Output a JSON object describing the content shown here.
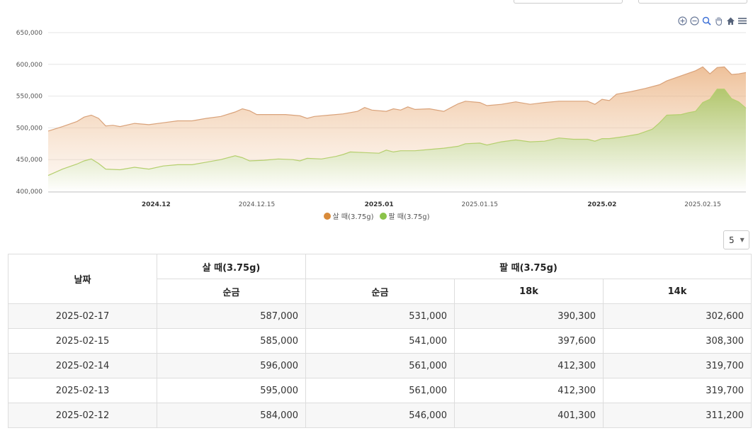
{
  "chart_data": {
    "type": "area",
    "y_ticks": [
      "650,000",
      "600,000",
      "550,000",
      "500,000",
      "450,000",
      "400,000"
    ],
    "ylim": [
      400000,
      650000
    ],
    "x_ticks": [
      {
        "label": "2024.12",
        "bold": true,
        "day": 15
      },
      {
        "label": "2024.12.15",
        "bold": false,
        "day": 29
      },
      {
        "label": "2025.01",
        "bold": true,
        "day": 46
      },
      {
        "label": "2025.01.15",
        "bold": false,
        "day": 60
      },
      {
        "label": "2025.02",
        "bold": true,
        "day": 77
      },
      {
        "label": "2025.02.15",
        "bold": false,
        "day": 91
      }
    ],
    "series": [
      {
        "name": "살 때(3.75g)",
        "color": "#d98b3a",
        "points": [
          [
            0,
            495000
          ],
          [
            2,
            502000
          ],
          [
            4,
            510000
          ],
          [
            5,
            517000
          ],
          [
            6,
            520000
          ],
          [
            7,
            515000
          ],
          [
            8,
            503000
          ],
          [
            9,
            504000
          ],
          [
            10,
            502000
          ],
          [
            12,
            507000
          ],
          [
            14,
            505000
          ],
          [
            16,
            508000
          ],
          [
            18,
            511000
          ],
          [
            20,
            511000
          ],
          [
            22,
            515000
          ],
          [
            24,
            518000
          ],
          [
            26,
            525000
          ],
          [
            27,
            530000
          ],
          [
            28,
            527000
          ],
          [
            29,
            521000
          ],
          [
            31,
            521000
          ],
          [
            33,
            521000
          ],
          [
            35,
            519000
          ],
          [
            36,
            515000
          ],
          [
            37,
            518000
          ],
          [
            39,
            520000
          ],
          [
            41,
            522000
          ],
          [
            43,
            526000
          ],
          [
            44,
            532000
          ],
          [
            45,
            528000
          ],
          [
            47,
            526000
          ],
          [
            48,
            530000
          ],
          [
            49,
            528000
          ],
          [
            50,
            533000
          ],
          [
            51,
            529000
          ],
          [
            53,
            530000
          ],
          [
            55,
            526000
          ],
          [
            56,
            532000
          ],
          [
            57,
            538000
          ],
          [
            58,
            542000
          ],
          [
            60,
            540000
          ],
          [
            61,
            535000
          ],
          [
            63,
            537000
          ],
          [
            65,
            541000
          ],
          [
            67,
            537000
          ],
          [
            69,
            540000
          ],
          [
            71,
            542000
          ],
          [
            73,
            542000
          ],
          [
            75,
            542000
          ],
          [
            76,
            537000
          ],
          [
            77,
            545000
          ],
          [
            78,
            543000
          ],
          [
            79,
            553000
          ],
          [
            81,
            557000
          ],
          [
            83,
            562000
          ],
          [
            85,
            568000
          ],
          [
            86,
            574000
          ],
          [
            88,
            582000
          ],
          [
            90,
            590000
          ],
          [
            91,
            596000
          ],
          [
            92,
            585000
          ],
          [
            93,
            595000
          ],
          [
            94,
            596000
          ],
          [
            95,
            584000
          ],
          [
            96,
            585000
          ],
          [
            97,
            587000
          ]
        ]
      },
      {
        "name": "팔 때(3.75g)",
        "color": "#8bc34a",
        "points": [
          [
            0,
            425000
          ],
          [
            2,
            435000
          ],
          [
            4,
            443000
          ],
          [
            5,
            448000
          ],
          [
            6,
            451000
          ],
          [
            7,
            444000
          ],
          [
            8,
            435000
          ],
          [
            10,
            434000
          ],
          [
            12,
            438000
          ],
          [
            14,
            435000
          ],
          [
            16,
            440000
          ],
          [
            18,
            442000
          ],
          [
            20,
            442000
          ],
          [
            22,
            446000
          ],
          [
            24,
            450000
          ],
          [
            26,
            456000
          ],
          [
            27,
            453000
          ],
          [
            28,
            448000
          ],
          [
            30,
            449000
          ],
          [
            32,
            451000
          ],
          [
            34,
            450000
          ],
          [
            35,
            448000
          ],
          [
            36,
            452000
          ],
          [
            38,
            451000
          ],
          [
            40,
            455000
          ],
          [
            41,
            458000
          ],
          [
            42,
            462000
          ],
          [
            44,
            461000
          ],
          [
            46,
            460000
          ],
          [
            47,
            465000
          ],
          [
            48,
            462000
          ],
          [
            49,
            464000
          ],
          [
            51,
            464000
          ],
          [
            53,
            466000
          ],
          [
            55,
            468000
          ],
          [
            57,
            471000
          ],
          [
            58,
            475000
          ],
          [
            60,
            476000
          ],
          [
            61,
            473000
          ],
          [
            63,
            478000
          ],
          [
            65,
            481000
          ],
          [
            67,
            478000
          ],
          [
            69,
            479000
          ],
          [
            71,
            484000
          ],
          [
            73,
            482000
          ],
          [
            75,
            482000
          ],
          [
            76,
            479000
          ],
          [
            77,
            483000
          ],
          [
            78,
            483000
          ],
          [
            80,
            486000
          ],
          [
            82,
            490000
          ],
          [
            84,
            498000
          ],
          [
            85,
            508000
          ],
          [
            86,
            520000
          ],
          [
            88,
            521000
          ],
          [
            89,
            524000
          ],
          [
            90,
            526000
          ],
          [
            91,
            540000
          ],
          [
            92,
            545000
          ],
          [
            93,
            561000
          ],
          [
            94,
            561000
          ],
          [
            95,
            546000
          ],
          [
            96,
            541000
          ],
          [
            97,
            531000
          ]
        ]
      }
    ],
    "grid": true,
    "legend_position": "bottom-center"
  },
  "toolbar": {
    "icons": [
      "zoom-in-icon",
      "zoom-out-icon",
      "magnifier-icon",
      "pan-icon",
      "home-icon",
      "menu-icon"
    ]
  },
  "page_size": {
    "value": "5"
  },
  "table": {
    "header": {
      "date": "날짜",
      "buy_group": "살 때(3.75g)",
      "sell_group": "팔 때(3.75g)",
      "pure": "순금",
      "pure2": "순금",
      "k18": "18k",
      "k14": "14k"
    },
    "rows": [
      {
        "date": "2025-02-17",
        "buy": "587,000",
        "sell": "531,000",
        "k18": "390,300",
        "k14": "302,600"
      },
      {
        "date": "2025-02-15",
        "buy": "585,000",
        "sell": "541,000",
        "k18": "397,600",
        "k14": "308,300"
      },
      {
        "date": "2025-02-14",
        "buy": "596,000",
        "sell": "561,000",
        "k18": "412,300",
        "k14": "319,700"
      },
      {
        "date": "2025-02-13",
        "buy": "595,000",
        "sell": "561,000",
        "k18": "412,300",
        "k14": "319,700"
      },
      {
        "date": "2025-02-12",
        "buy": "584,000",
        "sell": "546,000",
        "k18": "401,300",
        "k14": "311,200"
      }
    ]
  }
}
